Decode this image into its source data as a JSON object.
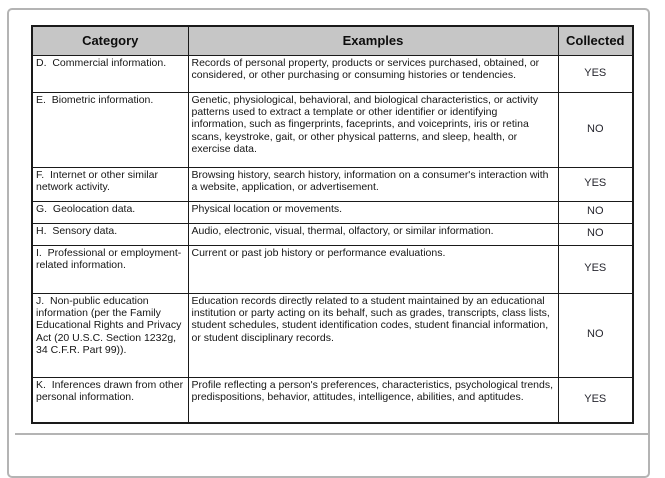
{
  "colors": {
    "page_border": "#b4b4b4",
    "table_border": "#1a1a1a",
    "header_background": "#c6c6c6",
    "text": "#161616"
  },
  "table": {
    "headers": {
      "category": "Category",
      "examples": "Examples",
      "collected": "Collected"
    },
    "rows": [
      {
        "category": "D.  Commercial information.",
        "examples": "Records of personal property, products or services purchased, obtained, or considered, or other purchasing or consuming histories or tendencies.",
        "collected": "YES"
      },
      {
        "category": "E.  Biometric information.",
        "examples": "Genetic, physiological, behavioral, and biological characteristics, or activity patterns used to extract a template or other identifier or identifying information, such as fingerprints, faceprints, and voiceprints, iris or retina scans, keystroke, gait, or other physical patterns, and sleep, health, or exercise data.",
        "collected": "NO"
      },
      {
        "category": "F.  Internet or other similar network activity.",
        "examples": "Browsing history, search history, information on a consumer's interaction with a website, application, or advertisement.",
        "collected": "YES"
      },
      {
        "category": "G.  Geolocation data.",
        "examples": "Physical location or movements.",
        "collected": "NO"
      },
      {
        "category": "H.  Sensory data.",
        "examples": "Audio, electronic, visual, thermal, olfactory, or similar information.",
        "collected": "NO"
      },
      {
        "category": "I.  Professional or employment-related information.",
        "examples": "Current or past job history or performance evaluations.",
        "collected": "YES"
      },
      {
        "category": "J.  Non-public education information (per the Family Educational Rights and Privacy Act (20 U.S.C. Section 1232g, 34 C.F.R. Part 99)).",
        "examples": "Education records directly related to a student maintained by an educational institution or party acting on its behalf, such as grades, transcripts, class lists, student schedules, student identification codes, student financial information, or student disciplinary records.",
        "collected": "NO"
      },
      {
        "category": "K.  Inferences drawn from other personal information.",
        "examples": "Profile reflecting a person's preferences, characteristics, psychological trends, predispositions, behavior, attitudes, intelligence, abilities, and aptitudes.",
        "collected": "YES"
      }
    ]
  }
}
